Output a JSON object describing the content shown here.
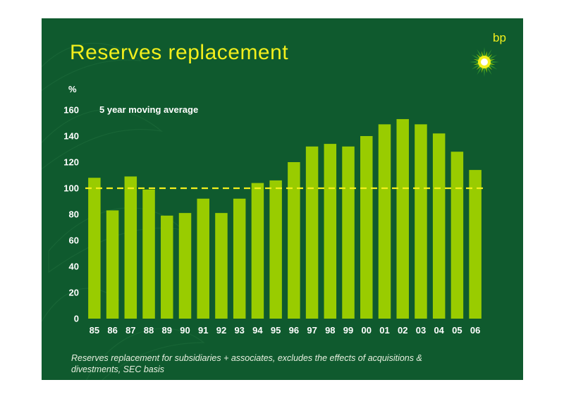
{
  "slide": {
    "title": "Reserves replacement",
    "logo": {
      "text": "bp",
      "icon": "helios-sunburst-icon",
      "colors": [
        "#f2ef1c",
        "#9acd00",
        "#2e8b2e"
      ]
    },
    "footnote": "Reserves replacement for subsidiaries + associates, excludes the effects of acquisitions & divestments, SEC basis",
    "colors": {
      "background": "#0f5a2e",
      "bars": "#99cc00",
      "title": "#f2ef1c",
      "reference_line": "#f2ef1c"
    }
  },
  "chart_data": {
    "type": "bar",
    "ylabel": "%",
    "ylim": [
      0,
      160
    ],
    "yticks": [
      0,
      20,
      40,
      60,
      80,
      100,
      120,
      140,
      160
    ],
    "categories": [
      "85",
      "86",
      "87",
      "88",
      "89",
      "90",
      "91",
      "92",
      "93",
      "94",
      "95",
      "96",
      "97",
      "98",
      "99",
      "00",
      "01",
      "02",
      "03",
      "04",
      "05",
      "06"
    ],
    "values": [
      108,
      83,
      109,
      99,
      79,
      81,
      92,
      81,
      92,
      104,
      106,
      120,
      132,
      134,
      132,
      140,
      149,
      153,
      149,
      142,
      128,
      114
    ],
    "annotation": "5 year moving average",
    "reference_line": {
      "value": 100,
      "style": "dashed"
    },
    "grid": false,
    "legend": "none"
  }
}
